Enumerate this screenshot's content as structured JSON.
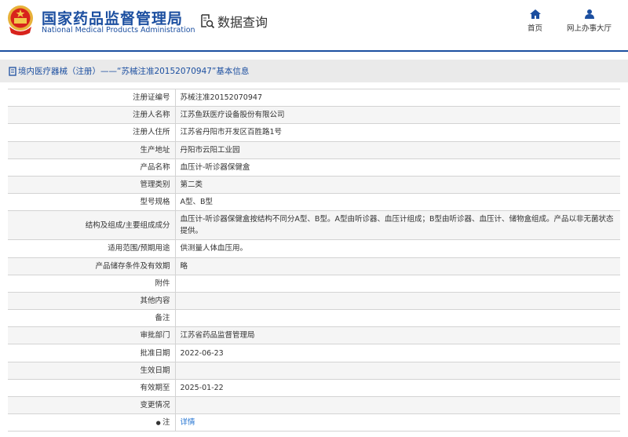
{
  "header": {
    "org_name_cn": "国家药品监督管理局",
    "org_name_en": "National Medical Products Administration",
    "section_title": "数据查询",
    "nav": [
      {
        "label": "首页",
        "icon": "home-icon"
      },
      {
        "label": "网上办事大厅",
        "icon": "users-icon"
      }
    ]
  },
  "breadcrumb": {
    "text": "境内医疗器械（注册）——“苏械注准20152070947”基本信息"
  },
  "table": {
    "rows": [
      {
        "label": "注册证编号",
        "value": "苏械注准20152070947"
      },
      {
        "label": "注册人名称",
        "value": "江苏鱼跃医疗设备股份有限公司"
      },
      {
        "label": "注册人住所",
        "value": "江苏省丹阳市开发区百胜路1号"
      },
      {
        "label": "生产地址",
        "value": "丹阳市云阳工业园"
      },
      {
        "label": "产品名称",
        "value": "血压计-听诊器保健盒"
      },
      {
        "label": "管理类别",
        "value": "第二类"
      },
      {
        "label": "型号规格",
        "value": "A型、B型"
      },
      {
        "label": "结构及组成/主要组成成分",
        "value": "血压计-听诊器保健盒按结构不同分A型、B型。A型由听诊器、血压计组成；B型由听诊器、血压计、储物盒组成。产品以非无菌状态提供。"
      },
      {
        "label": "适用范围/预期用途",
        "value": "供测量人体血压用。"
      },
      {
        "label": "产品储存条件及有效期",
        "value": "略"
      },
      {
        "label": "附件",
        "value": ""
      },
      {
        "label": "其他内容",
        "value": ""
      },
      {
        "label": "备注",
        "value": ""
      },
      {
        "label": "审批部门",
        "value": "江苏省药品监督管理局"
      },
      {
        "label": "批准日期",
        "value": "2022-06-23"
      },
      {
        "label": "生效日期",
        "value": ""
      },
      {
        "label": "有效期至",
        "value": "2025-01-22"
      },
      {
        "label": "变更情况",
        "value": ""
      },
      {
        "label": "注",
        "value": "详情"
      }
    ]
  },
  "colors": {
    "brand": "#1c4fa0",
    "link": "#1c6fd0"
  }
}
